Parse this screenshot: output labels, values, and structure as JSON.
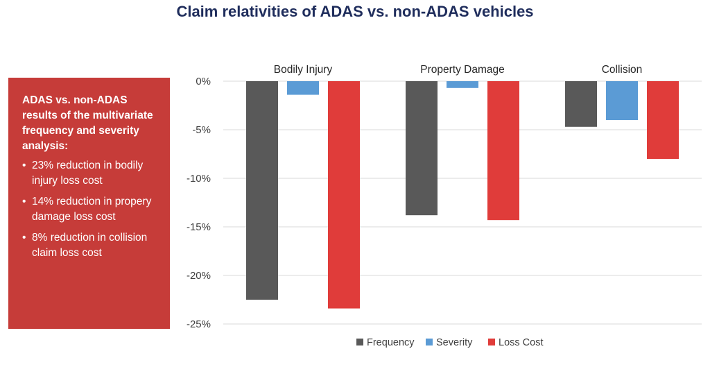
{
  "title": "Claim relativities of ADAS vs. non-ADAS vehicles",
  "side_panel": {
    "heading": "ADAS vs. non-ADAS results of the multivariate frequency and severity analysis:",
    "bullets": [
      "23% reduction in bodily injury loss cost",
      "14% reduction in propery damage loss cost",
      "8% reduction in collision claim loss cost"
    ],
    "bullet_symbol": "•",
    "color": "#c63c39"
  },
  "chart_data": {
    "type": "bar",
    "title": "Claim relativities of ADAS vs. non-ADAS vehicles",
    "categories": [
      "Bodily Injury",
      "Property Damage",
      "Collision"
    ],
    "series": [
      {
        "name": "Frequency",
        "color": "#595959",
        "values": [
          -22.5,
          -13.8,
          -4.7
        ]
      },
      {
        "name": "Severity",
        "color": "#5b9bd5",
        "values": [
          -1.4,
          -0.7,
          -4.0
        ]
      },
      {
        "name": "Loss Cost",
        "color": "#e03c3a",
        "values": [
          -23.4,
          -14.3,
          -8.0
        ]
      }
    ],
    "ylim": [
      -25,
      0
    ],
    "yticks": [
      0,
      -5,
      -10,
      -15,
      -20,
      -25
    ],
    "ytick_labels": [
      "0%",
      "-5%",
      "-10%",
      "-15%",
      "-20%",
      "-25%"
    ],
    "category_label_position": "top",
    "grid": "horizontal",
    "legend_position": "bottom"
  }
}
